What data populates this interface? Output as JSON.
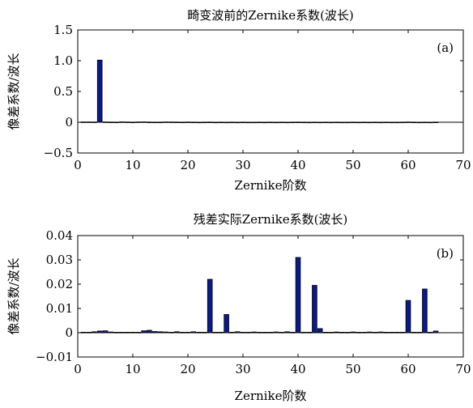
{
  "chart_data": [
    {
      "type": "bar",
      "title": "畸变波前的Zernike系数(波长)",
      "xlabel": "Zernike阶数",
      "ylabel": "像差系数/波长",
      "panel_label": "(a)",
      "xlim": [
        0,
        70
      ],
      "ylim": [
        -0.5,
        1.5
      ],
      "xticks": [
        0,
        10,
        20,
        30,
        40,
        50,
        60,
        70
      ],
      "xtick_labels": [
        "0",
        "10",
        "20",
        "30",
        "40",
        "50",
        "60",
        "70"
      ],
      "yticks": [
        -0.5,
        0,
        0.5,
        1.0,
        1.5
      ],
      "ytick_labels": [
        "−0.5",
        "0",
        "0.5",
        "1.0",
        "1.5"
      ],
      "grid": false,
      "bar_color": "#0a1a8c",
      "x": [
        1,
        2,
        3,
        4,
        5,
        6,
        7,
        8,
        9,
        10,
        11,
        12,
        13,
        14,
        15,
        16,
        17,
        18,
        19,
        20,
        21,
        22,
        23,
        24,
        25,
        26,
        27,
        28,
        29,
        30,
        31,
        32,
        33,
        34,
        35,
        36,
        37,
        38,
        39,
        40,
        41,
        42,
        43,
        44,
        45,
        46,
        47,
        48,
        49,
        50,
        51,
        52,
        53,
        54,
        55,
        56,
        57,
        58,
        59,
        60,
        61,
        62,
        63,
        64,
        65
      ],
      "values": [
        0.005,
        0.005,
        0.004,
        1.01,
        0.005,
        0.003,
        0.002,
        0.006,
        0.004,
        0.002,
        0.005,
        0.006,
        0.003,
        0.002,
        0.002,
        0.005,
        0.004,
        0.003,
        0.002,
        0.004,
        0.002,
        0.001,
        0.002,
        0.003,
        0.001,
        0.002,
        0.001,
        0.002,
        0.001,
        0.002,
        0.001,
        0.001,
        0.002,
        0.001,
        0.002,
        0.001,
        0.002,
        0.001,
        0.002,
        0.003,
        0.002,
        0.001,
        0.002,
        0.001,
        0.002,
        0.001,
        0.002,
        0.001,
        0.001,
        0.002,
        0.001,
        0.002,
        0.001,
        0.002,
        0.001,
        0.002,
        0.001,
        0.001,
        0.002,
        0.004,
        0.002,
        0.001,
        0.002,
        0.001,
        0.003
      ]
    },
    {
      "type": "bar",
      "title": "残差实际Zernike系数(波长)",
      "xlabel": "Zernike阶数",
      "ylabel": "像差系数/波长",
      "panel_label": "(b)",
      "xlim": [
        0,
        70
      ],
      "ylim": [
        -0.01,
        0.04
      ],
      "xticks": [
        0,
        10,
        20,
        30,
        40,
        50,
        60,
        70
      ],
      "xtick_labels": [
        "0",
        "10",
        "20",
        "30",
        "40",
        "50",
        "60",
        "70"
      ],
      "yticks": [
        -0.01,
        0,
        0.01,
        0.02,
        0.03,
        0.04
      ],
      "ytick_labels": [
        "−0.01",
        "0",
        "0.01",
        "0.02",
        "0.03",
        "0.04"
      ],
      "grid": false,
      "bar_color": "#0a1a8c",
      "x": [
        1,
        2,
        3,
        4,
        5,
        6,
        7,
        8,
        9,
        10,
        11,
        12,
        13,
        14,
        15,
        16,
        17,
        18,
        19,
        20,
        21,
        22,
        23,
        24,
        25,
        26,
        27,
        28,
        29,
        30,
        31,
        32,
        33,
        34,
        35,
        36,
        37,
        38,
        39,
        40,
        41,
        42,
        43,
        44,
        45,
        46,
        47,
        48,
        49,
        50,
        51,
        52,
        53,
        54,
        55,
        56,
        57,
        58,
        59,
        60,
        61,
        62,
        63,
        64,
        65
      ],
      "values": [
        0.0002,
        0.0002,
        0.0004,
        0.0007,
        0.0008,
        0.0003,
        0.0002,
        0.0002,
        0.0002,
        0.0002,
        0.0002,
        0.0008,
        0.001,
        0.0005,
        0.0004,
        0.0003,
        0.0002,
        0.0004,
        0.0002,
        0.0002,
        0.0004,
        0.0002,
        0.0002,
        0.022,
        0.0002,
        0.0002,
        0.0075,
        0.0002,
        0.0004,
        0.0002,
        0.0002,
        0.0003,
        0.0002,
        0.0002,
        0.0002,
        0.0003,
        0.0002,
        0.0004,
        0.0002,
        0.031,
        0.0002,
        0.0002,
        0.0195,
        0.0017,
        0.0002,
        0.0002,
        0.0003,
        0.0002,
        0.0002,
        0.0003,
        0.0002,
        0.0002,
        0.0003,
        0.0002,
        0.0003,
        0.0002,
        0.0002,
        0.0002,
        0.0002,
        0.0133,
        0.0002,
        0.0002,
        0.018,
        0.0002,
        0.0007
      ]
    }
  ]
}
